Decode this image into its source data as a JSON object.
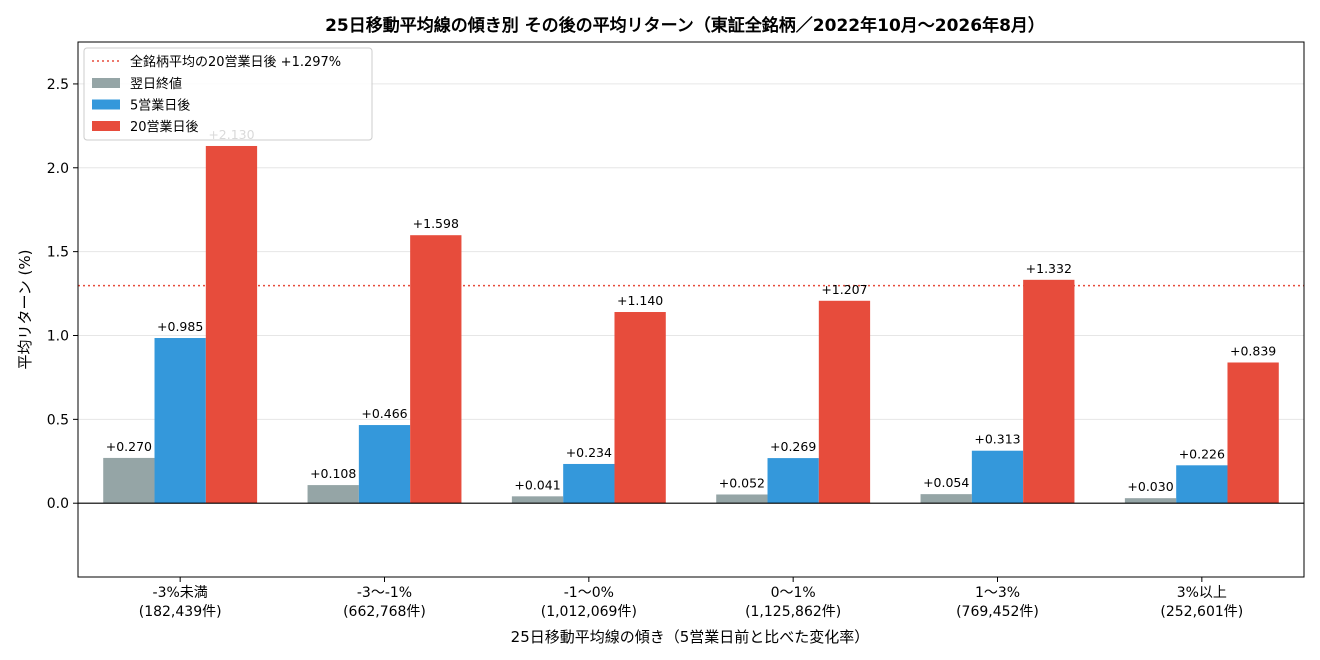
{
  "chart_data": {
    "type": "bar",
    "title": "25日移動平均線の傾き別 その後の平均リターン（東証全銘柄／2022年10月～2026年8月）",
    "xlabel": "25日移動平均線の傾き（5営業日前と比べた変化率）",
    "ylabel": "平均リターン (%)",
    "ylim": [
      -0.44,
      2.75
    ],
    "yticks": [
      "0.0",
      "0.5",
      "1.0",
      "1.5",
      "2.0",
      "2.5"
    ],
    "ytick_values": [
      0.0,
      0.5,
      1.0,
      1.5,
      2.0,
      2.5
    ],
    "grid": "horizontal",
    "legend_position": "top-left",
    "categories": [
      {
        "label": "-3%未満",
        "count": "(182,439件)"
      },
      {
        "label": "-3～-1%",
        "count": "(662,768件)"
      },
      {
        "label": "-1～0%",
        "count": "(1,012,069件)"
      },
      {
        "label": "0～1%",
        "count": "(1,125,862件)"
      },
      {
        "label": "1～3%",
        "count": "(769,452件)"
      },
      {
        "label": "3%以上",
        "count": "(252,601件)"
      }
    ],
    "series": [
      {
        "name": "翌日終値",
        "color": "#95a5a6",
        "values": [
          0.27,
          0.108,
          0.041,
          0.052,
          0.054,
          0.03
        ],
        "labels": [
          "+0.270",
          "+0.108",
          "+0.041",
          "+0.052",
          "+0.054",
          "+0.030"
        ]
      },
      {
        "name": "5営業日後",
        "color": "#3498db",
        "values": [
          0.985,
          0.466,
          0.234,
          0.269,
          0.313,
          0.226
        ],
        "labels": [
          "+0.985",
          "+0.466",
          "+0.234",
          "+0.269",
          "+0.313",
          "+0.226"
        ]
      },
      {
        "name": "20営業日後",
        "color": "#e74c3c",
        "values": [
          2.13,
          1.598,
          1.14,
          1.207,
          1.332,
          0.839
        ],
        "labels": [
          "+2.130",
          "+1.598",
          "+1.140",
          "+1.207",
          "+1.332",
          "+0.839"
        ]
      }
    ],
    "reference_line": {
      "name": "全銘柄平均の20営業日後 +1.297%",
      "value": 1.297,
      "color": "#e74c3c",
      "style": "dotted"
    }
  }
}
